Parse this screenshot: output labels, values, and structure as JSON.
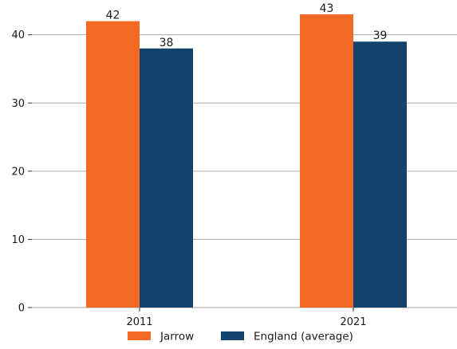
{
  "chart_data": {
    "type": "bar",
    "categories": [
      "2011",
      "2021"
    ],
    "series": [
      {
        "name": "Jarrow",
        "values": [
          42,
          43
        ],
        "color": "#F46A25"
      },
      {
        "name": "England (average)",
        "values": [
          38,
          39
        ],
        "color": "#12436D"
      }
    ],
    "title": "",
    "xlabel": "",
    "ylabel": "",
    "ylim": [
      0,
      43
    ],
    "yticks": [
      0,
      10,
      20,
      30,
      40
    ],
    "grid": true,
    "legend_position": "bottom",
    "data_labels": true,
    "colors": {
      "gridline": "#a6a6a6",
      "axis": "#333333"
    }
  }
}
